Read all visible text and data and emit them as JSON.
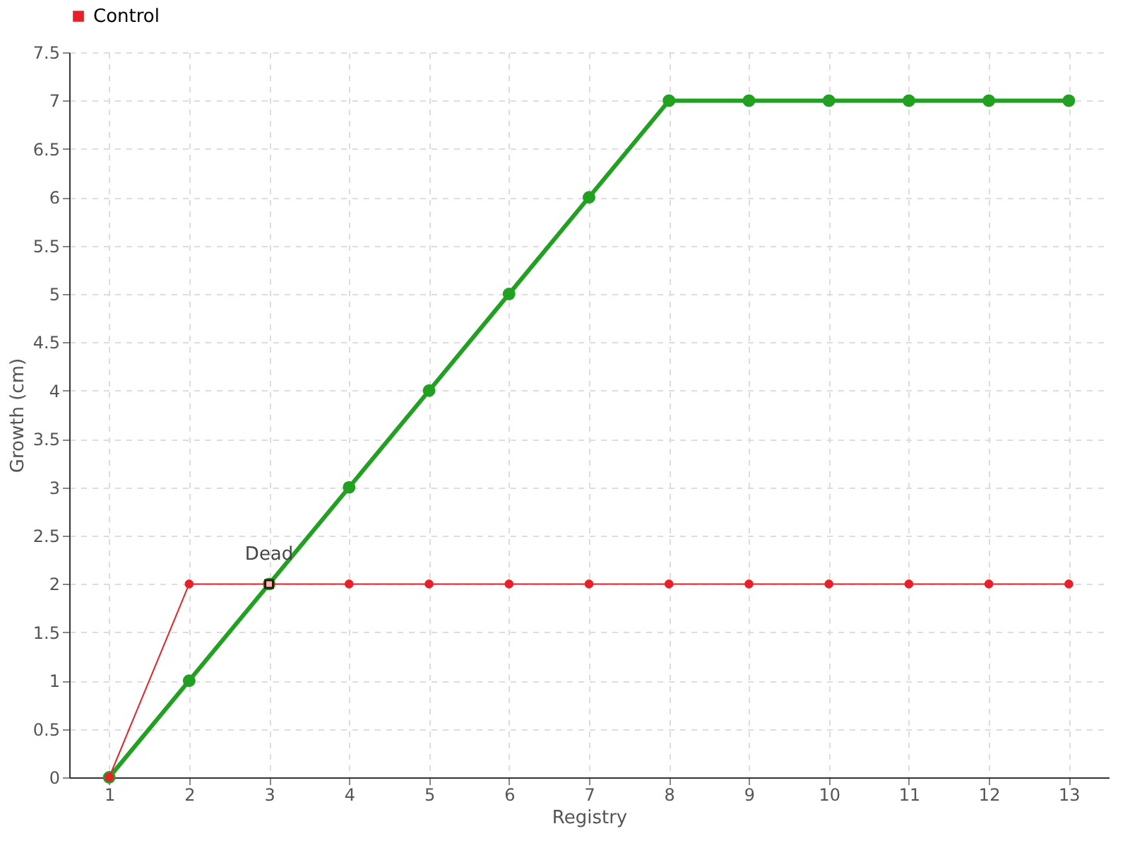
{
  "chart_data": {
    "type": "line",
    "xlabel": "Registry",
    "ylabel": "Growth (cm)",
    "x": [
      1,
      2,
      3,
      4,
      5,
      6,
      7,
      8,
      9,
      10,
      11,
      12,
      13
    ],
    "xlim": [
      0.5,
      13.5
    ],
    "xticks": [
      1,
      2,
      3,
      4,
      5,
      6,
      7,
      8,
      9,
      10,
      11,
      12,
      13
    ],
    "series": [
      {
        "color": "#22a022",
        "values": [
          0,
          1,
          2,
          3,
          4,
          5,
          6,
          7,
          7,
          7,
          7,
          7,
          7
        ]
      },
      {
        "name": "Control",
        "color": "#e8202a",
        "values": [
          0,
          2,
          2,
          2,
          2,
          2,
          2,
          2,
          2,
          2,
          2,
          2,
          2
        ]
      }
    ],
    "ylim": [
      0,
      7.5
    ],
    "yticks": [
      0,
      0.5,
      1,
      1.5,
      2,
      2.5,
      3,
      3.5,
      4,
      4.5,
      5,
      5.5,
      6,
      6.5,
      7,
      7.5
    ],
    "annotations": [
      {
        "text": "Dead",
        "x": 3,
        "y": 2
      }
    ],
    "grid": true,
    "legend": "top left",
    "marker": "circle",
    "line_style": "solid"
  }
}
